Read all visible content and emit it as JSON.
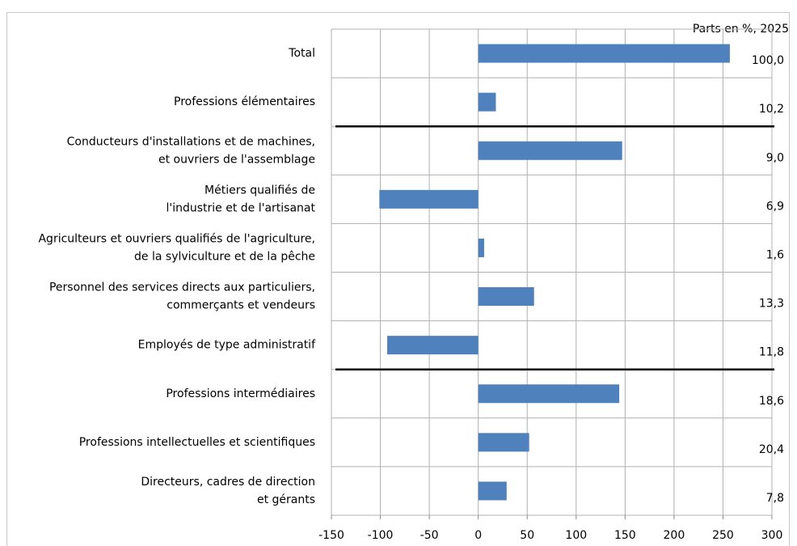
{
  "chart_data": {
    "type": "bar",
    "orientation": "horizontal",
    "title": "Parts en %, 2025",
    "categories": [
      "Total",
      "Professions élémentaires",
      "Conducteurs d'installations et de machines,\net ouvriers de l'assemblage",
      "Métiers qualifiés de\nl'industrie et de l'artisanat",
      "Agriculteurs et ouvriers qualifiés de l'agriculture,\nde la sylviculture et de la pêche",
      "Personnel des services directs aux particuliers,\ncommerçants et vendeurs",
      "Employés de type administratif",
      "Professions intermédiaires",
      "Professions intellectuelles et scientifiques",
      "Directeurs, cadres de direction\net gérants"
    ],
    "values": [
      257,
      18,
      147,
      -101,
      6,
      57,
      -93,
      144,
      52,
      29
    ],
    "shares": [
      "100,0",
      "10,2",
      "9,0",
      "6,9",
      "1,6",
      "13,3",
      "11,8",
      "18,6",
      "20,4",
      "7,8"
    ],
    "color": "#4f81bd",
    "xlim": [
      -150,
      300
    ],
    "xticks": [
      -150,
      -100,
      -50,
      0,
      50,
      100,
      150,
      200,
      250,
      300
    ],
    "grid": true
  }
}
